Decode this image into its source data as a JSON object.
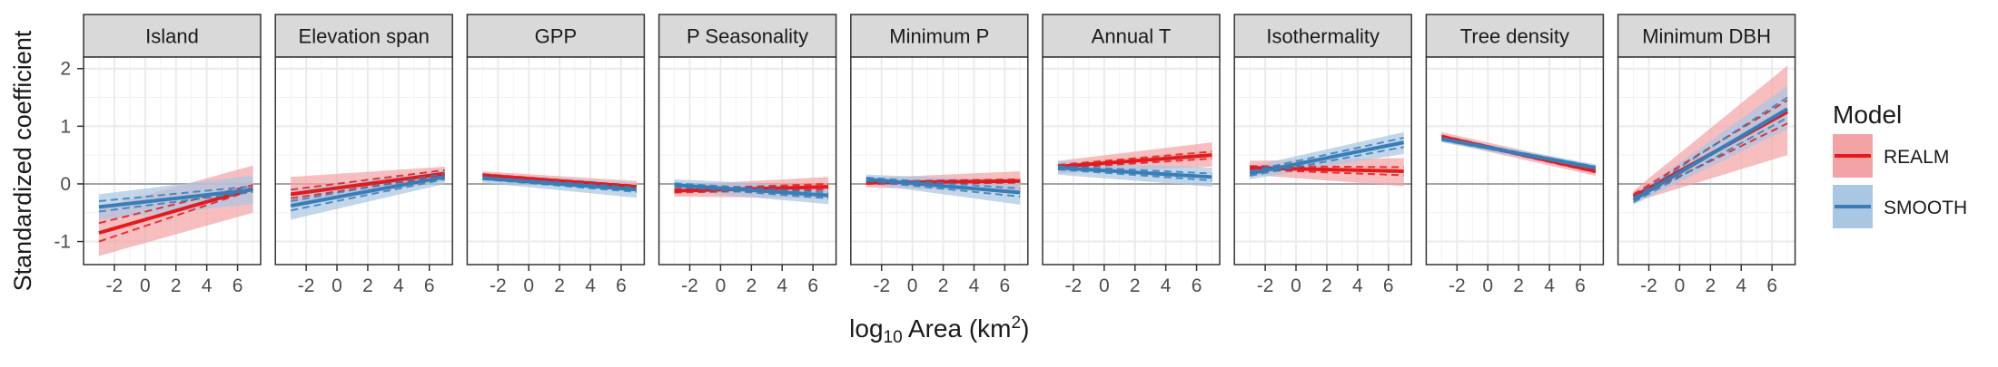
{
  "chart_data": {
    "type": "line",
    "layout": "faceted",
    "title": "",
    "ylabel": "Standardized coefficient",
    "xlabel_main": "log",
    "xlabel_sub": "10",
    "xlabel_area": " Area (km",
    "xlabel_sup": "2",
    "xlabel_close": ")",
    "xlim": [
      -4,
      7.5
    ],
    "ylim": [
      -1.4,
      2.2
    ],
    "xticks": [
      -2,
      0,
      2,
      4,
      6
    ],
    "xtick_labels": [
      "-2",
      "0",
      "2",
      "4",
      "6"
    ],
    "yticks": [
      -1,
      0,
      1,
      2
    ],
    "ytick_labels": [
      "-1",
      "0",
      "1",
      "2"
    ],
    "reference_line": 0,
    "grid": true,
    "legend": {
      "title": "Model",
      "placement": "right",
      "entries": [
        {
          "label": "REALM",
          "color": "#e41a1c",
          "fill": "#f4a3a5"
        },
        {
          "label": "SMOOTH",
          "color": "#377eb8",
          "fill": "#a9c6e3"
        }
      ]
    },
    "x": [
      -3,
      7
    ],
    "panels": [
      {
        "title": "Island",
        "series": [
          {
            "name": "REALM",
            "mean": [
              -0.85,
              -0.08
            ],
            "dash_a": [
              -1.0,
              -0.1
            ],
            "dash_b": [
              -0.68,
              -0.02
            ],
            "lower": [
              -1.25,
              -0.5
            ],
            "upper": [
              -0.42,
              0.32
            ]
          },
          {
            "name": "SMOOTH",
            "mean": [
              -0.4,
              -0.1
            ],
            "dash_a": [
              -0.48,
              -0.14
            ],
            "dash_b": [
              -0.3,
              -0.04
            ],
            "lower": [
              -0.62,
              -0.35
            ],
            "upper": [
              -0.18,
              0.15
            ]
          }
        ]
      },
      {
        "title": "Elevation span",
        "series": [
          {
            "name": "REALM",
            "mean": [
              -0.18,
              0.18
            ],
            "dash_a": [
              -0.25,
              0.14
            ],
            "dash_b": [
              -0.1,
              0.24
            ],
            "lower": [
              -0.4,
              0.06
            ],
            "upper": [
              0.12,
              0.3
            ]
          },
          {
            "name": "SMOOTH",
            "mean": [
              -0.38,
              0.12
            ],
            "dash_a": [
              -0.46,
              0.08
            ],
            "dash_b": [
              -0.3,
              0.18
            ],
            "lower": [
              -0.62,
              0.0
            ],
            "upper": [
              -0.12,
              0.24
            ]
          }
        ]
      },
      {
        "title": "GPP",
        "series": [
          {
            "name": "REALM",
            "mean": [
              0.15,
              -0.05
            ],
            "dash_a": [
              0.13,
              -0.07
            ],
            "dash_b": [
              0.17,
              -0.03
            ],
            "lower": [
              0.08,
              -0.12
            ],
            "upper": [
              0.22,
              0.05
            ]
          },
          {
            "name": "SMOOTH",
            "mean": [
              0.1,
              -0.1
            ],
            "dash_a": [
              0.08,
              -0.14
            ],
            "dash_b": [
              0.12,
              -0.06
            ],
            "lower": [
              0.02,
              -0.24
            ],
            "upper": [
              0.18,
              0.02
            ]
          }
        ]
      },
      {
        "title": "P Seasonality",
        "series": [
          {
            "name": "REALM",
            "mean": [
              -0.12,
              -0.05
            ],
            "dash_a": [
              -0.15,
              -0.1
            ],
            "dash_b": [
              -0.09,
              0.0
            ],
            "lower": [
              -0.22,
              -0.25
            ],
            "upper": [
              -0.02,
              0.12
            ]
          },
          {
            "name": "SMOOTH",
            "mean": [
              -0.02,
              -0.2
            ],
            "dash_a": [
              -0.05,
              -0.25
            ],
            "dash_b": [
              0.01,
              -0.15
            ],
            "lower": [
              -0.12,
              -0.35
            ],
            "upper": [
              0.08,
              -0.05
            ]
          }
        ]
      },
      {
        "title": "Minimum P",
        "series": [
          {
            "name": "REALM",
            "mean": [
              0.02,
              0.05
            ],
            "dash_a": [
              0.0,
              0.02
            ],
            "dash_b": [
              0.04,
              0.08
            ],
            "lower": [
              -0.06,
              -0.14
            ],
            "upper": [
              0.1,
              0.22
            ]
          },
          {
            "name": "SMOOTH",
            "mean": [
              0.08,
              -0.15
            ],
            "dash_a": [
              0.05,
              -0.22
            ],
            "dash_b": [
              0.11,
              -0.08
            ],
            "lower": [
              0.0,
              -0.36
            ],
            "upper": [
              0.16,
              0.06
            ]
          }
        ]
      },
      {
        "title": "Annual T",
        "series": [
          {
            "name": "REALM",
            "mean": [
              0.3,
              0.5
            ],
            "dash_a": [
              0.27,
              0.44
            ],
            "dash_b": [
              0.33,
              0.56
            ],
            "lower": [
              0.18,
              0.3
            ],
            "upper": [
              0.4,
              0.72
            ]
          },
          {
            "name": "SMOOTH",
            "mean": [
              0.28,
              0.12
            ],
            "dash_a": [
              0.25,
              0.06
            ],
            "dash_b": [
              0.31,
              0.18
            ],
            "lower": [
              0.16,
              -0.05
            ],
            "upper": [
              0.4,
              0.28
            ]
          }
        ]
      },
      {
        "title": "Isothermality",
        "series": [
          {
            "name": "REALM",
            "mean": [
              0.28,
              0.22
            ],
            "dash_a": [
              0.25,
              0.15
            ],
            "dash_b": [
              0.31,
              0.29
            ],
            "lower": [
              0.16,
              -0.04
            ],
            "upper": [
              0.4,
              0.45
            ]
          },
          {
            "name": "SMOOTH",
            "mean": [
              0.18,
              0.72
            ],
            "dash_a": [
              0.14,
              0.64
            ],
            "dash_b": [
              0.22,
              0.8
            ],
            "lower": [
              0.08,
              0.52
            ],
            "upper": [
              0.3,
              0.9
            ]
          }
        ]
      },
      {
        "title": "Tree density",
        "series": [
          {
            "name": "REALM",
            "mean": [
              0.82,
              0.22
            ],
            "dash_a": [
              0.8,
              0.2
            ],
            "dash_b": [
              0.84,
              0.24
            ],
            "lower": [
              0.74,
              0.14
            ],
            "upper": [
              0.9,
              0.3
            ]
          },
          {
            "name": "SMOOTH",
            "mean": [
              0.78,
              0.28
            ],
            "dash_a": [
              0.76,
              0.26
            ],
            "dash_b": [
              0.8,
              0.3
            ],
            "lower": [
              0.72,
              0.22
            ],
            "upper": [
              0.84,
              0.34
            ]
          }
        ]
      },
      {
        "title": "Minimum DBH",
        "series": [
          {
            "name": "REALM",
            "mean": [
              -0.22,
              1.25
            ],
            "dash_a": [
              -0.26,
              1.05
            ],
            "dash_b": [
              -0.18,
              1.45
            ],
            "lower": [
              -0.32,
              0.5
            ],
            "upper": [
              -0.12,
              2.05
            ]
          },
          {
            "name": "SMOOTH",
            "mean": [
              -0.28,
              1.3
            ],
            "dash_a": [
              -0.32,
              1.15
            ],
            "dash_b": [
              -0.24,
              1.5
            ],
            "lower": [
              -0.36,
              0.95
            ],
            "upper": [
              -0.2,
              1.7
            ]
          }
        ]
      }
    ]
  }
}
